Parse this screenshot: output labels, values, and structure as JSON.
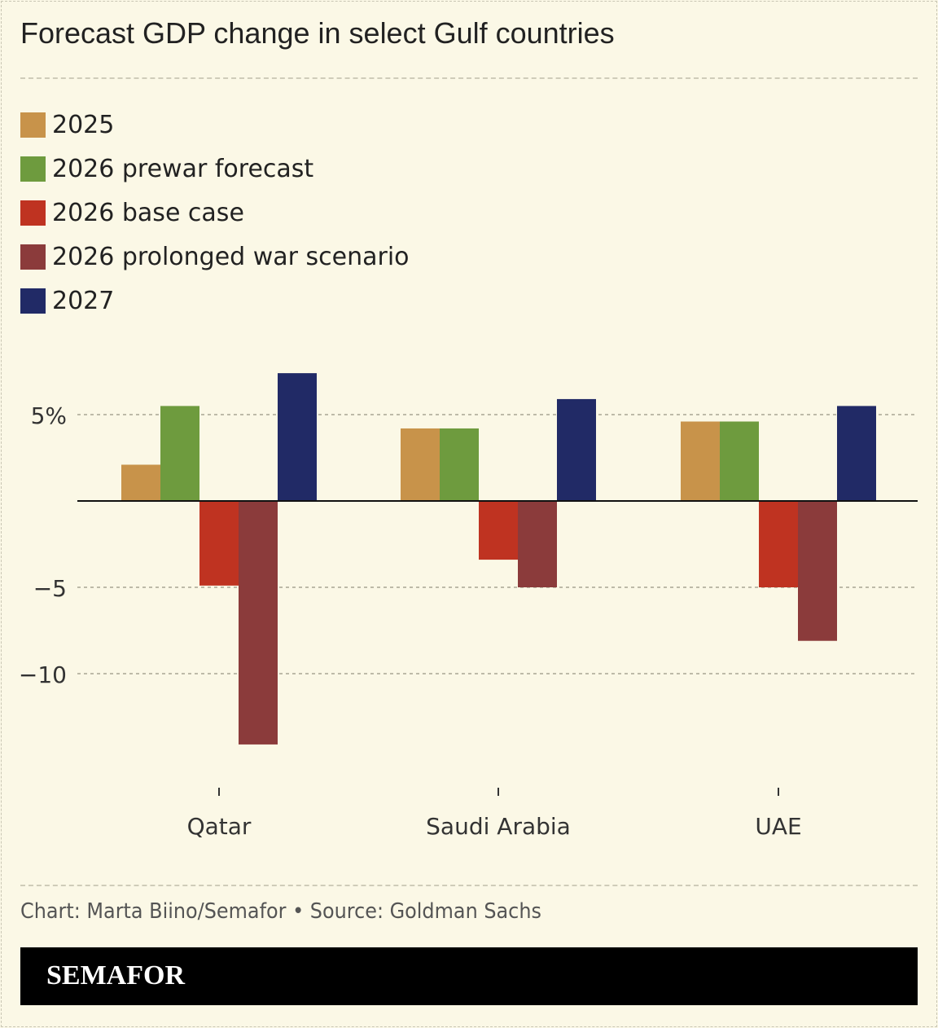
{
  "chart_data": {
    "type": "bar",
    "title": "Forecast GDP change in select Gulf countries",
    "categories": [
      "Qatar",
      "Saudi Arabia",
      "UAE"
    ],
    "series": [
      {
        "name": "2025",
        "color": "#C8934A",
        "values": [
          2.1,
          4.2,
          4.6
        ]
      },
      {
        "name": "2026 prewar forecast",
        "color": "#6E9B3E",
        "values": [
          5.5,
          4.2,
          4.6
        ]
      },
      {
        "name": "2026 base case",
        "color": "#BF3321",
        "values": [
          -4.9,
          -3.4,
          -5.0
        ]
      },
      {
        "name": "2026 prolonged war scenario",
        "color": "#8B3B3B",
        "values": [
          -14.1,
          -5.0,
          -8.1
        ]
      },
      {
        "name": "2027",
        "color": "#212A66",
        "values": [
          7.4,
          5.9,
          5.5
        ]
      }
    ],
    "yticks": [
      {
        "value": 5,
        "label": "5%"
      },
      {
        "value": -5,
        "label": "−5"
      },
      {
        "value": -10,
        "label": "−10"
      }
    ],
    "ylim": [
      -16,
      8
    ],
    "grid": true,
    "legend": "top-left"
  },
  "footer": {
    "credit": "Chart: Marta Biino/Semafor • Source: Goldman Sachs",
    "brand": "SEMAFOR"
  }
}
